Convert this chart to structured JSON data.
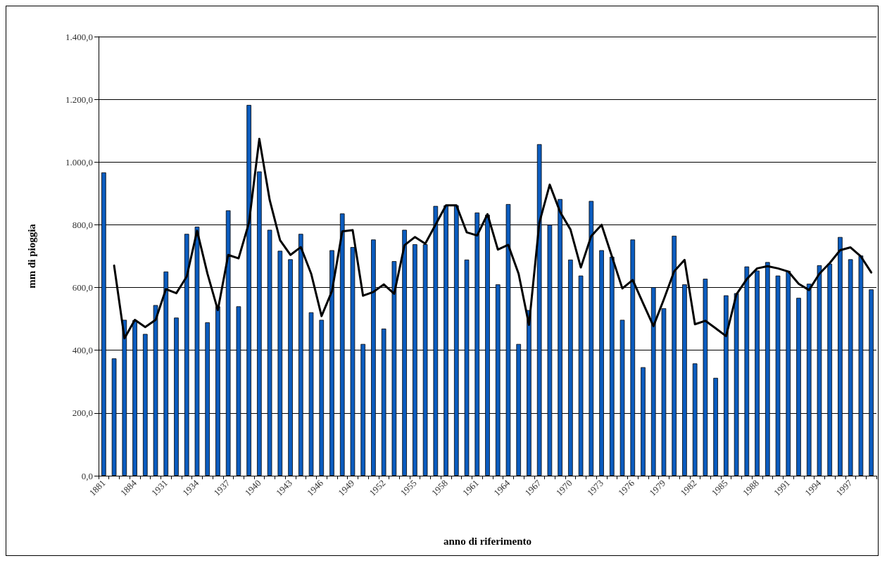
{
  "chart_data": {
    "type": "bar",
    "xlabel": "anno di riferimento",
    "ylabel": "mm di pioggia",
    "categories": [
      "1881",
      null,
      null,
      "1884",
      null,
      null,
      "1931",
      null,
      null,
      "1934",
      null,
      null,
      "1937",
      null,
      null,
      "1940",
      null,
      null,
      "1943",
      null,
      null,
      "1946",
      null,
      null,
      "1949",
      null,
      null,
      "1952",
      null,
      null,
      "1955",
      null,
      null,
      "1958",
      null,
      null,
      "1961",
      null,
      null,
      "1964",
      null,
      null,
      "1967",
      null,
      null,
      "1970",
      null,
      null,
      "1973",
      null,
      null,
      "1976",
      null,
      null,
      "1979",
      null,
      null,
      "1982",
      null,
      null,
      "1985",
      null,
      null,
      "1988",
      null,
      null,
      "1991",
      null,
      null,
      "1994",
      null,
      null,
      "1997",
      null,
      null
    ],
    "series": [
      {
        "color": "#0b5cbf",
        "values": [
          967,
          374,
          497,
          496,
          452,
          544,
          651,
          504,
          771,
          794,
          489,
          540,
          846,
          540,
          1182,
          970,
          784,
          717,
          690,
          771,
          521,
          497,
          719,
          836,
          729,
          420,
          753,
          469,
          684,
          784,
          738,
          738,
          860,
          862,
          862,
          689,
          839,
          832,
          610,
          866,
          420,
          528,
          1057,
          800,
          882,
          689,
          638,
          876,
          719,
          698,
          497,
          753,
          346,
          601,
          534,
          765,
          610,
          358,
          628,
          312,
          575,
          582,
          667,
          654,
          681,
          638,
          653,
          567,
          612,
          671,
          676,
          761,
          690,
          702,
          594
        ]
      },
      {
        "type": "line",
        "color": "#000000",
        "values": [
          null,
          670,
          438,
          497,
          474,
          497,
          595,
          582,
          635,
          781,
          644,
          528,
          704,
          693,
          806,
          1074,
          879,
          751,
          704,
          729,
          644,
          509,
          588,
          779,
          783,
          574,
          586,
          610,
          580,
          735,
          761,
          740,
          801,
          862,
          862,
          776,
          766,
          834,
          721,
          736,
          644,
          481,
          807,
          928,
          841,
          785,
          664,
          764,
          800,
          699,
          597,
          624,
          550,
          477,
          562,
          652,
          688,
          483,
          494,
          470,
          445,
          578,
          627,
          661,
          668,
          661,
          651,
          612,
          592,
          644,
          678,
          719,
          728,
          699,
          648
        ]
      }
    ],
    "ylim": [
      0,
      1400
    ],
    "yticks": [
      {
        "value": 0,
        "label": "0,0"
      },
      {
        "value": 200,
        "label": "200,0"
      },
      {
        "value": 400,
        "label": "400,0"
      },
      {
        "value": 600,
        "label": "600,0"
      },
      {
        "value": 800,
        "label": "800,0"
      },
      {
        "value": 1000,
        "label": "1.000,0"
      },
      {
        "value": 1200,
        "label": "1.200,0"
      },
      {
        "value": 1400,
        "label": "1.400,0"
      }
    ],
    "grid": "y",
    "marker": "none",
    "line_style": "solid"
  }
}
